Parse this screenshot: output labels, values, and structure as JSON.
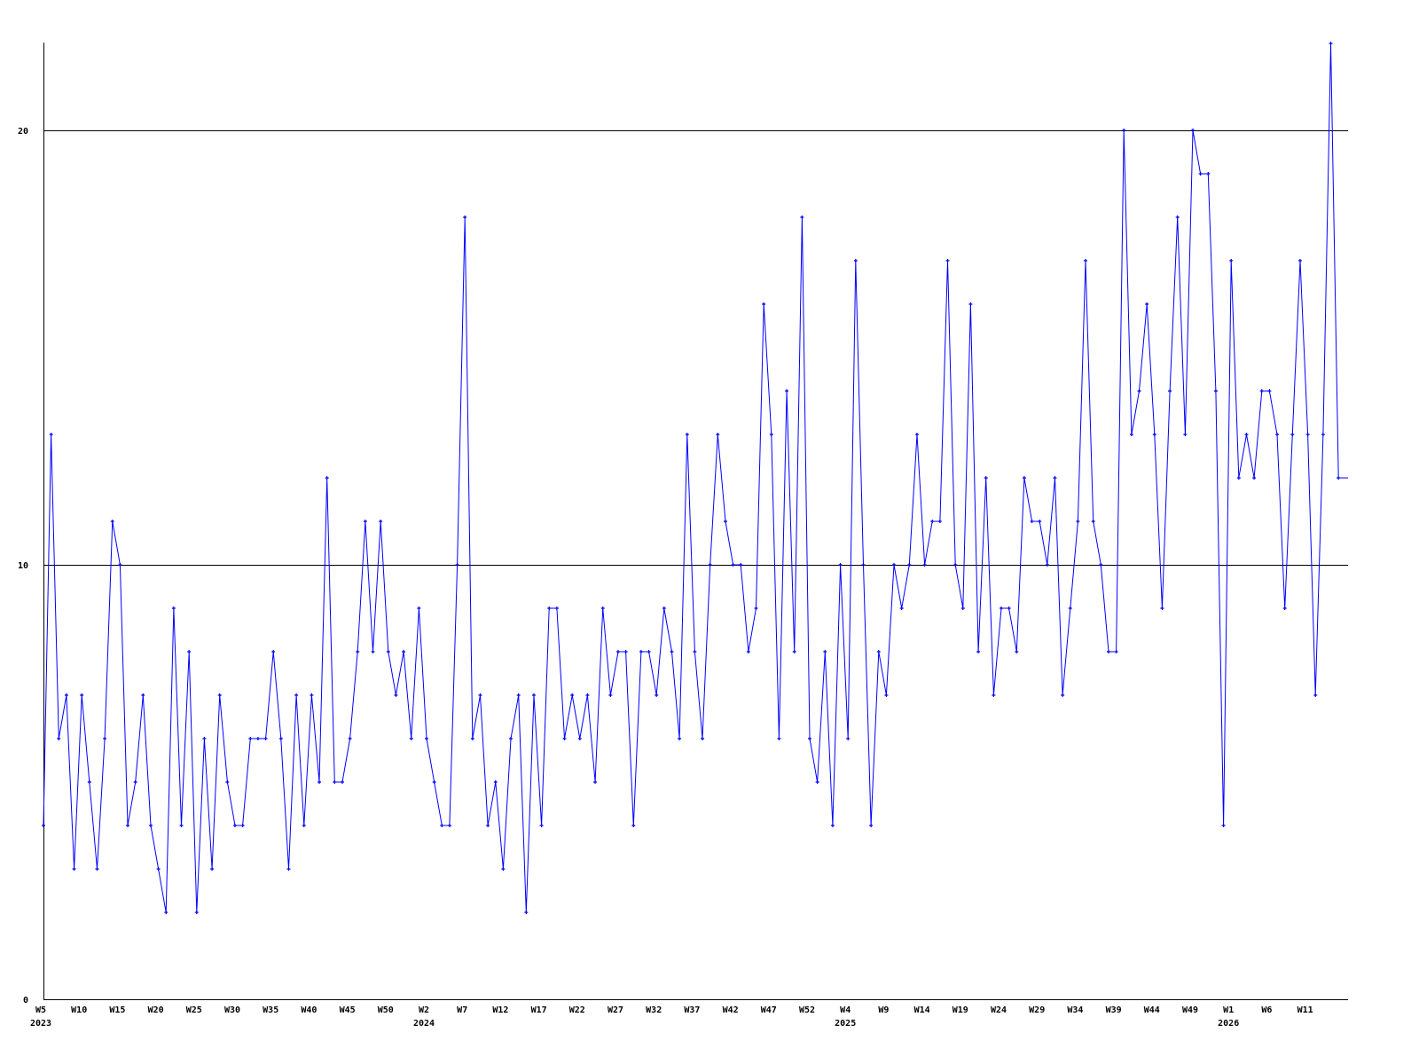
{
  "chart_data": {
    "type": "line",
    "title": "",
    "xlabel": "",
    "ylabel": "",
    "ylim": [
      0,
      22
    ],
    "y_ticks": [
      0,
      10,
      20
    ],
    "grid": "horizontal at y ticks",
    "line_color": "#0000ff",
    "grid_color": "#000000",
    "marker": "plus",
    "x_ticks": [
      "W5",
      "W10",
      "W15",
      "W20",
      "W25",
      "W30",
      "W35",
      "W40",
      "W45",
      "W50",
      "W2",
      "W7",
      "W12",
      "W17",
      "W22",
      "W27",
      "W32",
      "W37",
      "W42",
      "W47",
      "W52",
      "W4",
      "W9",
      "W14",
      "W19",
      "W24",
      "W29",
      "W34",
      "W39",
      "W44",
      "W49",
      "W1",
      "W6",
      "W11"
    ],
    "year_labels": [
      {
        "year": "2023",
        "at": "2023-W5"
      },
      {
        "year": "2024",
        "at": "2024-W2"
      },
      {
        "year": "2025",
        "at": "2025-W4"
      },
      {
        "year": "2026",
        "at": "2026-W1"
      }
    ],
    "x": [
      "2023-W5",
      "2023-W6",
      "2023-W7",
      "2023-W8",
      "2023-W9",
      "2023-W10",
      "2023-W11",
      "2023-W12",
      "2023-W13",
      "2023-W14",
      "2023-W15",
      "2023-W16",
      "2023-W17",
      "2023-W18",
      "2023-W19",
      "2023-W20",
      "2023-W21",
      "2023-W22",
      "2023-W23",
      "2023-W24",
      "2023-W25",
      "2023-W26",
      "2023-W27",
      "2023-W28",
      "2023-W29",
      "2023-W30",
      "2023-W31",
      "2023-W32",
      "2023-W33",
      "2023-W34",
      "2023-W35",
      "2023-W36",
      "2023-W37",
      "2023-W38",
      "2023-W39",
      "2023-W40",
      "2023-W41",
      "2023-W42",
      "2023-W43",
      "2023-W44",
      "2023-W45",
      "2023-W46",
      "2023-W47",
      "2023-W48",
      "2023-W49",
      "2023-W50",
      "2023-W51",
      "2023-W52",
      "2023-W53",
      "2024-W1",
      "2024-W2",
      "2024-W3",
      "2024-W4",
      "2024-W5",
      "2024-W6",
      "2024-W7",
      "2024-W8",
      "2024-W9",
      "2024-W10",
      "2024-W11",
      "2024-W12",
      "2024-W13",
      "2024-W14",
      "2024-W15",
      "2024-W16",
      "2024-W17",
      "2024-W18",
      "2024-W19",
      "2024-W20",
      "2024-W21",
      "2024-W22",
      "2024-W23",
      "2024-W24",
      "2024-W25",
      "2024-W26",
      "2024-W27",
      "2024-W28",
      "2024-W29",
      "2024-W30",
      "2024-W31",
      "2024-W32",
      "2024-W33",
      "2024-W34",
      "2024-W35",
      "2024-W36",
      "2024-W37",
      "2024-W38",
      "2024-W39",
      "2024-W40",
      "2024-W41",
      "2024-W42",
      "2024-W43",
      "2024-W44",
      "2024-W45",
      "2024-W46",
      "2024-W47",
      "2024-W48",
      "2024-W49",
      "2024-W50",
      "2024-W51",
      "2024-W52",
      "2024-W53",
      "2025-W1",
      "2025-W2",
      "2025-W3",
      "2025-W4",
      "2025-W5",
      "2025-W6",
      "2025-W7",
      "2025-W8",
      "2025-W9",
      "2025-W10",
      "2025-W11",
      "2025-W12",
      "2025-W13",
      "2025-W14",
      "2025-W15",
      "2025-W16",
      "2025-W17",
      "2025-W18",
      "2025-W19",
      "2025-W20",
      "2025-W21",
      "2025-W22",
      "2025-W23",
      "2025-W24",
      "2025-W25",
      "2025-W26",
      "2025-W27",
      "2025-W28",
      "2025-W29",
      "2025-W30",
      "2025-W31",
      "2025-W32",
      "2025-W33",
      "2025-W34",
      "2025-W35",
      "2025-W36",
      "2025-W37",
      "2025-W38",
      "2025-W39",
      "2025-W40",
      "2025-W41",
      "2025-W42",
      "2025-W43",
      "2025-W44",
      "2025-W45",
      "2025-W46",
      "2025-W47",
      "2025-W48",
      "2025-W49",
      "2025-W50",
      "2025-W51",
      "2025-W52",
      "2025-W53",
      "2026-W1",
      "2026-W2",
      "2026-W3",
      "2026-W4",
      "2026-W5",
      "2026-W6",
      "2026-W7",
      "2026-W8",
      "2026-W9",
      "2026-W10",
      "2026-W11",
      "2026-W12",
      "2026-W13",
      "2026-W14",
      "2026-W15"
    ],
    "values": [
      4,
      13,
      6,
      7,
      3,
      7,
      5,
      3,
      6,
      11,
      10,
      4,
      5,
      7,
      4,
      3,
      2,
      9,
      4,
      8,
      2,
      6,
      3,
      7,
      5,
      4,
      4,
      6,
      6,
      6,
      8,
      6,
      3,
      7,
      4,
      7,
      5,
      12,
      5,
      5,
      6,
      8,
      11,
      8,
      11,
      8,
      7,
      8,
      6,
      9,
      6,
      5,
      4,
      4,
      10,
      18,
      6,
      7,
      4,
      5,
      3,
      6,
      7,
      2,
      7,
      4,
      9,
      9,
      6,
      7,
      6,
      7,
      5,
      9,
      7,
      8,
      8,
      4,
      8,
      8,
      7,
      9,
      8,
      6,
      13,
      8,
      6,
      10,
      13,
      11,
      10,
      10,
      8,
      9,
      16,
      13,
      6,
      14,
      8,
      18,
      6,
      5,
      8,
      4,
      10,
      6,
      17,
      10,
      4,
      8,
      7,
      10,
      9,
      10,
      13,
      10,
      11,
      11,
      17,
      10,
      9,
      16,
      8,
      12,
      7,
      9,
      9,
      8,
      12,
      11,
      11,
      10,
      12,
      7,
      9,
      11,
      17,
      11,
      10,
      8,
      8,
      20,
      13,
      14,
      16,
      13,
      9,
      14,
      18,
      13,
      20,
      19,
      19,
      14,
      4,
      17,
      12,
      13,
      12,
      14,
      14,
      13,
      9,
      13,
      17,
      13,
      7,
      13,
      22,
      12
    ]
  }
}
